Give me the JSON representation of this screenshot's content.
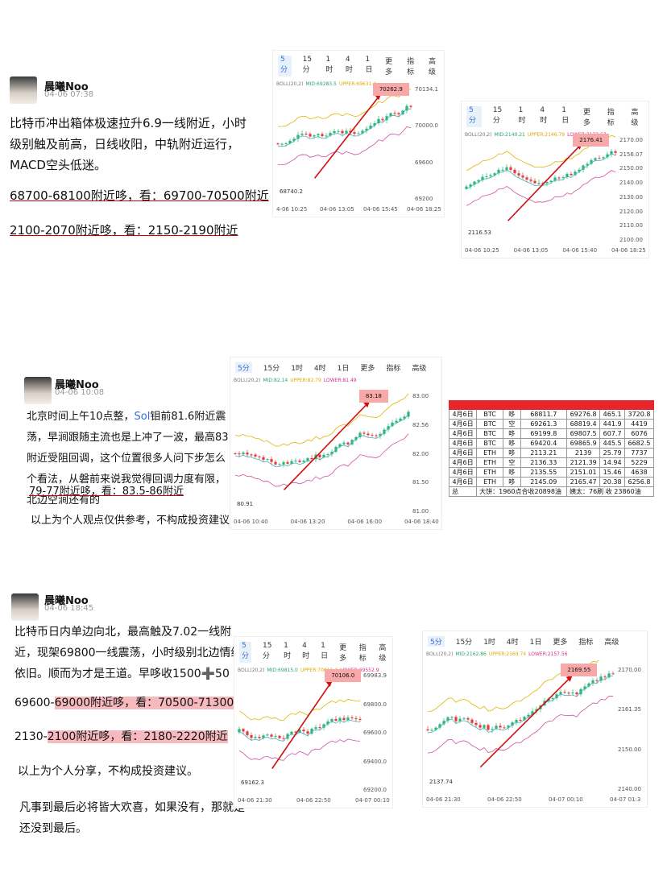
{
  "posts": [
    {
      "author": "晨曦Noo",
      "time": "04-06 07:38",
      "body": "比特币冲出箱体极速拉升6.9一线附近，小时级别触及前高，日线收阳，中轨附近运行，MACD空头低迷。",
      "lines": [
        "68700-68100附近哆，看：69700-70500附近",
        "2100-2070附近哆，看：2150-2190附近"
      ]
    },
    {
      "author": "晨曦Noo",
      "time": "04-06 10:08",
      "body": [
        "北京时间上午10点整，",
        "Sol",
        "钼前81.6附近震荡，早涧跟随主流也是上冲了一波，最高83附近受阻回调，这个位置很多人问下步怎么个看法，从磐前来说我觉得回调力度有限，北边空涧还有的"
      ],
      "lines": [
        "79-77附近哆，看：83.5-86附近",
        "以上为个人观点仅供参考，不构成投资建议。"
      ]
    },
    {
      "author": "晨曦Noo",
      "time": "04-06 18:45",
      "body": "比特币日内单边向北，最高触及7.02一线附近，现架69800一线震荡，小时级别北边情绪依旧。顺而为才是王道。早哆收1500➕50",
      "lines": [
        [
          "69600-",
          "69000附近哆，看：70500-71300附近"
        ],
        [
          "2130-",
          "2100附近哆，看：2180-2220附近"
        ],
        "以上为个人分享，不构成投资建议。",
        "凡事到最后必将皆大欢喜，如果没有，那就是还没到最后。"
      ]
    }
  ],
  "tabs": [
    "5分",
    "15分",
    "1时",
    "4时",
    "1日",
    "更多",
    "指标",
    "高级"
  ],
  "charts": [
    {
      "indicator": [
        "BOLL(20,2)",
        "MID:69283.5",
        "UPPER:69631.4"
      ],
      "high": "70262.9",
      "low": "68740.2",
      "yticks": [
        "70134.1",
        "70000.0",
        "69600",
        "69200"
      ],
      "xticks": [
        "4-06 10:25",
        "04-06 13:05",
        "04-06 15:45",
        "04-06 18:25"
      ]
    },
    {
      "indicator": [
        "BOLL(20,2)",
        "MID:2140.21",
        "UPPER:2146.79",
        "LOWER:2133.63"
      ],
      "high": "2176.41",
      "low": "2116.53",
      "yticks": [
        "2170.00",
        "2156.07",
        "2150.00",
        "2140.00",
        "2130.00",
        "2120.00",
        "2110.00",
        "2100.00"
      ],
      "xticks": [
        "04-06 10:25",
        "04-06 13:05",
        "04-06 15:40",
        "04-06 18:25"
      ]
    },
    {
      "indicator": [
        "BOLL(20,2)",
        "MID:82.14",
        "UPPER:82.79",
        "LOWER:81.49"
      ],
      "high": "83.18",
      "low": "80.91",
      "yticks": [
        "83.00",
        "82.56",
        "82.00",
        "81.50",
        "81.00"
      ],
      "xticks": [
        "04-06 10:40",
        "04-06 13:20",
        "04-06 16:00",
        "04-06 18:40"
      ]
    },
    {
      "indicator": [
        "BOLL(20,2)",
        "MID:69815.0",
        "UPPER:70011.4",
        "LOWER:69552.9"
      ],
      "high": "70106.0",
      "low": "69162.3",
      "yticks": [
        "69983.9",
        "69800.0",
        "69600.0",
        "69400.0",
        "69200.0"
      ],
      "xticks": [
        "04-06 21:30",
        "04-06 22:50",
        "04-07 00:10"
      ]
    },
    {
      "indicator": [
        "BOLL(20,2)",
        "MID:2162.86",
        "UPPER:2169.74",
        "LOWER:2157.56"
      ],
      "high": "2169.55",
      "low": "2137.74",
      "yticks": [
        "2170.00",
        "2161.35",
        "2150.00",
        "2140.00"
      ],
      "xticks": [
        "04-06 21:30",
        "04-06 22:50",
        "04-07 00:10",
        "04-07 01:3"
      ]
    }
  ],
  "table": {
    "rows": [
      [
        "4月6日",
        "BTC",
        "哆",
        "68811.7",
        "69276.8",
        "465.1",
        "3720.8"
      ],
      [
        "4月6日",
        "BTC",
        "空",
        "69261.3",
        "68819.4",
        "441.9",
        "4419"
      ],
      [
        "4月6日",
        "BTC",
        "哆",
        "69199.8",
        "69807.5",
        "607.7",
        "6076"
      ],
      [
        "4月6日",
        "BTC",
        "哆",
        "69420.4",
        "69865.9",
        "445.5",
        "6682.5"
      ],
      [
        "4月6日",
        "ETH",
        "哆",
        "2113.21",
        "2139",
        "25.79",
        "7737"
      ],
      [
        "4月6日",
        "ETH",
        "空",
        "2136.33",
        "2121.39",
        "14.94",
        "5229"
      ],
      [
        "4月6日",
        "ETH",
        "哆",
        "2135.55",
        "2151.01",
        "15.46",
        "4638"
      ],
      [
        "4月6日",
        "ETH",
        "哆",
        "2145.09",
        "2165.47",
        "20.38",
        "6256.8"
      ]
    ],
    "footer": [
      "总",
      "大饼：1960点合收20898油",
      "姨太：76刷 收 23860油"
    ]
  }
}
